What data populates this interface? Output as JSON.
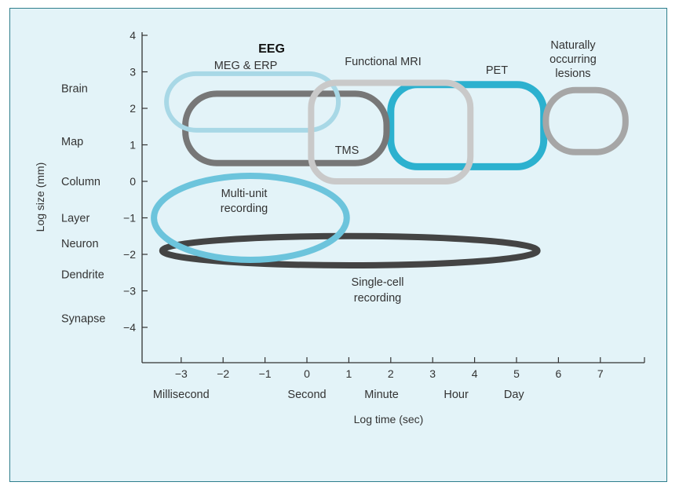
{
  "chart_data": {
    "type": "diagram",
    "xlabel": "Log time (sec)",
    "ylabel": "Log size (mm)",
    "x_ticks": [
      -3,
      -2,
      -1,
      0,
      1,
      2,
      3,
      4,
      5,
      6,
      7
    ],
    "y_ticks": [
      4,
      3,
      2,
      1,
      0,
      -1,
      -2,
      -3,
      -4
    ],
    "xlim": [
      -4,
      8
    ],
    "ylim": [
      -5,
      4
    ],
    "time_labels": [
      {
        "label": "Millisecond",
        "x": -3
      },
      {
        "label": "Second",
        "x": 0
      },
      {
        "label": "Minute",
        "x": 1.78
      },
      {
        "label": "Hour",
        "x": 3.56
      },
      {
        "label": "Day",
        "x": 4.94
      }
    ],
    "size_labels": [
      {
        "label": "Brain",
        "y": 2.55
      },
      {
        "label": "Map",
        "y": 1.1
      },
      {
        "label": "Column",
        "y": 0
      },
      {
        "label": "Layer",
        "y": -1
      },
      {
        "label": "Neuron",
        "y": -1.7
      },
      {
        "label": "Dendrite",
        "y": -2.55
      },
      {
        "label": "Synapse",
        "y": -3.75
      }
    ],
    "methods": [
      {
        "name": "EEG",
        "color": "#a8d8e6",
        "stroke": 6,
        "x": [
          -3.35,
          0.75
        ],
        "y": [
          1.4,
          2.95
        ],
        "bold": true
      },
      {
        "name": "MEG & ERP",
        "color": "#777777",
        "stroke": 8,
        "x": [
          -2.9,
          1.9
        ],
        "y": 0.5,
        "y_top": 2.4
      },
      {
        "name": "Functional MRI",
        "color": "#c9c9c9",
        "stroke": 8,
        "x": [
          0.1,
          3.9
        ],
        "y": [
          0.0,
          2.7
        ]
      },
      {
        "name": "PET",
        "color": "#2cb1cf",
        "stroke": 9,
        "x": [
          2.0,
          5.65
        ],
        "y": [
          0.4,
          2.65
        ]
      },
      {
        "name": "Naturally occurring lesions",
        "color": "#a6a6a6",
        "stroke": 8,
        "x": [
          5.7,
          7.6
        ],
        "y": [
          0.8,
          2.5
        ]
      },
      {
        "name": "TMS",
        "color": "#c9c9c9",
        "stroke": 0,
        "x": [
          0.5,
          1.5
        ],
        "y": [
          0.6,
          1.1
        ]
      },
      {
        "name": "Multi-unit recording",
        "color": "#6cc4dc",
        "stroke": 8,
        "x": [
          -3.65,
          0.95
        ],
        "y": [
          -2.15,
          0.15
        ]
      },
      {
        "name": "Single-cell recording",
        "color": "#444444",
        "stroke": 8,
        "x": [
          -3.45,
          5.5
        ],
        "y": [
          -2.3,
          -1.5
        ]
      }
    ],
    "labels": {
      "eeg": "EEG",
      "meg": "MEG & ERP",
      "fmri": "Functional MRI",
      "pet": "PET",
      "lesions_1": "Naturally",
      "lesions_2": "occurring",
      "lesions_3": "lesions",
      "tms": "TMS",
      "multi_1": "Multi-unit",
      "multi_2": "recording",
      "single_1": "Single-cell",
      "single_2": "recording"
    }
  }
}
